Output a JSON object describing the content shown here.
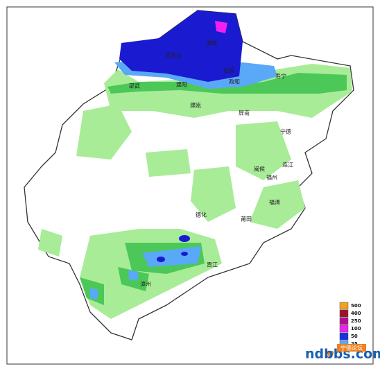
{
  "map": {
    "labels": [
      "浦城",
      "武夷山",
      "松溪",
      "政和",
      "寿宁",
      "邵武",
      "建阳",
      "建瓯",
      "屏南",
      "宁德",
      "闽侯",
      "福州",
      "连江",
      "德化",
      "莆田",
      "福清",
      "晋江",
      "漳州"
    ],
    "legend": {
      "values": [
        500,
        400,
        250,
        100,
        50,
        25
      ],
      "colors": [
        "#f0a020",
        "#a01028",
        "#b01090",
        "#f020f0",
        "#1a30e0",
        "#5aa8f8"
      ]
    },
    "watermark": {
      "site": "ndbbs.com",
      "badge": "宁德论坛"
    }
  }
}
